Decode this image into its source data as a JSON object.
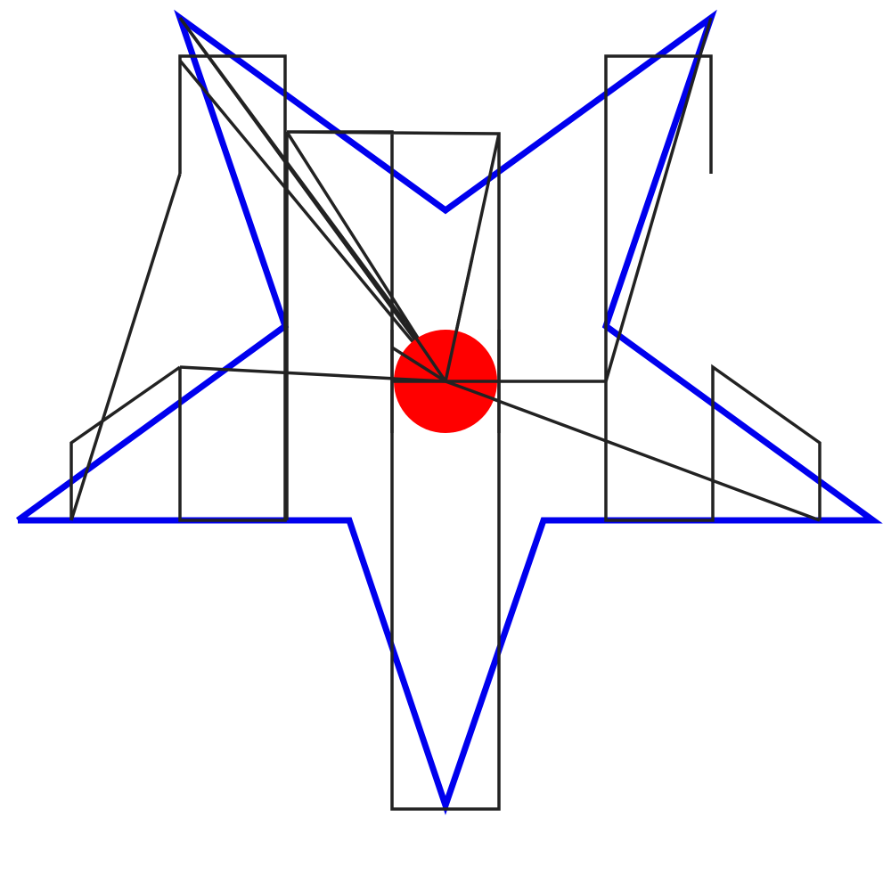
{
  "figure": {
    "kind": "geometric line drawing",
    "colors": {
      "background": "#ffffff",
      "star_outline": "#0000ee",
      "construction_lines": "#222222",
      "center_dot": "#ff0000"
    }
  }
}
